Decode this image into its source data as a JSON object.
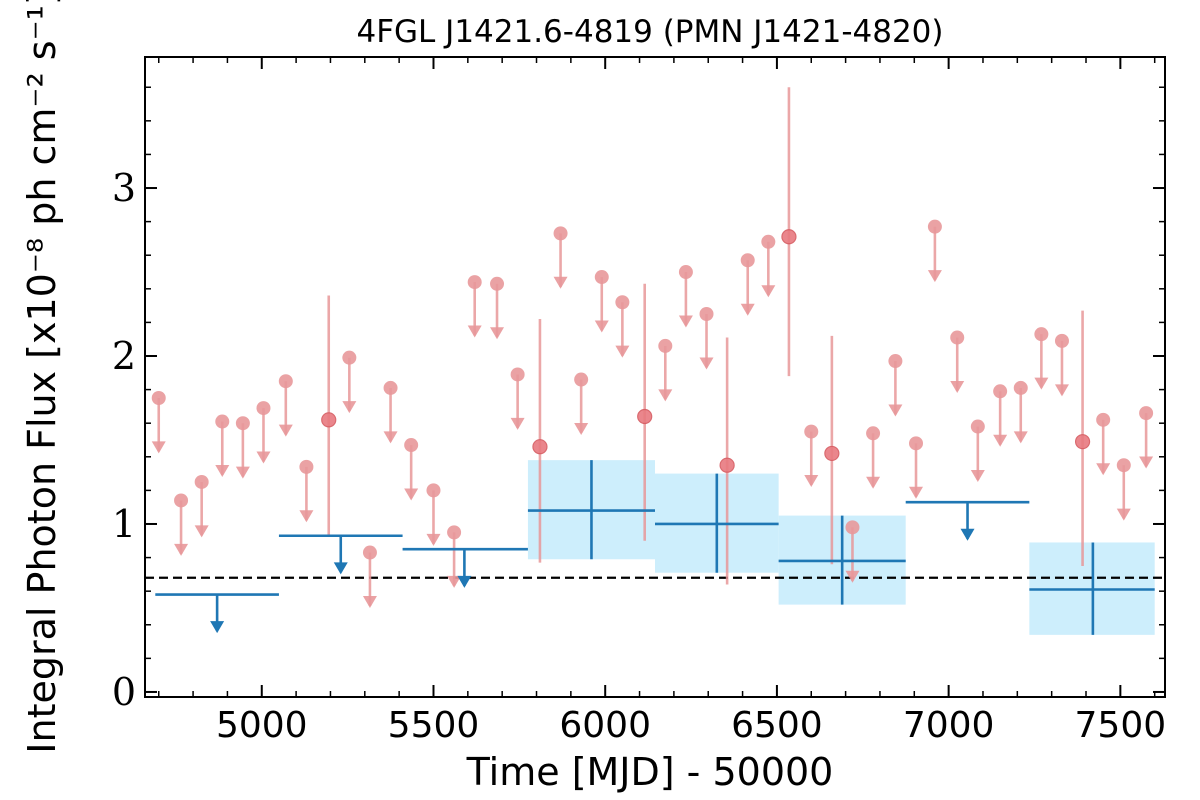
{
  "chart_data": {
    "type": "scatter",
    "title": "4FGL J1421.6-4819 (PMN J1421-4820)",
    "xlabel": "Time [MJD] - 50000",
    "ylabel": "Integral Photon Flux [x10⁻⁸ ph cm⁻² s⁻¹]",
    "xlim": [
      4660,
      7630
    ],
    "ylim": [
      -0.03,
      3.78
    ],
    "xticks": [
      5000,
      5500,
      6000,
      6500,
      7000,
      7500
    ],
    "yticks": [
      0,
      1,
      2,
      3
    ],
    "reference_level": 0.68,
    "colors": {
      "short_bins": "#e8989a",
      "long_bins": "#1f77b4",
      "long_bin_band": "#cdeefc",
      "reference_line": "#000000"
    },
    "short_bin_upper_limits": [
      {
        "x": 4700,
        "y": 1.75
      },
      {
        "x": 4765,
        "y": 1.14
      },
      {
        "x": 4825,
        "y": 1.25
      },
      {
        "x": 4885,
        "y": 1.61
      },
      {
        "x": 4945,
        "y": 1.6
      },
      {
        "x": 5005,
        "y": 1.69
      },
      {
        "x": 5070,
        "y": 1.85
      },
      {
        "x": 5130,
        "y": 1.34
      },
      {
        "x": 5255,
        "y": 1.99
      },
      {
        "x": 5315,
        "y": 0.83
      },
      {
        "x": 5375,
        "y": 1.81
      },
      {
        "x": 5435,
        "y": 1.47
      },
      {
        "x": 5500,
        "y": 1.2
      },
      {
        "x": 5560,
        "y": 0.95
      },
      {
        "x": 5620,
        "y": 2.44
      },
      {
        "x": 5685,
        "y": 2.43
      },
      {
        "x": 5745,
        "y": 1.89
      },
      {
        "x": 5870,
        "y": 2.73
      },
      {
        "x": 5930,
        "y": 1.86
      },
      {
        "x": 5990,
        "y": 2.47
      },
      {
        "x": 6050,
        "y": 2.32
      },
      {
        "x": 6175,
        "y": 2.06
      },
      {
        "x": 6235,
        "y": 2.5
      },
      {
        "x": 6295,
        "y": 2.25
      },
      {
        "x": 6415,
        "y": 2.57
      },
      {
        "x": 6475,
        "y": 2.68
      },
      {
        "x": 6600,
        "y": 1.55
      },
      {
        "x": 6720,
        "y": 0.98
      },
      {
        "x": 6780,
        "y": 1.54
      },
      {
        "x": 6845,
        "y": 1.97
      },
      {
        "x": 6905,
        "y": 1.48
      },
      {
        "x": 6960,
        "y": 2.77
      },
      {
        "x": 7025,
        "y": 2.11
      },
      {
        "x": 7085,
        "y": 1.58
      },
      {
        "x": 7150,
        "y": 1.79
      },
      {
        "x": 7210,
        "y": 1.81
      },
      {
        "x": 7270,
        "y": 2.13
      },
      {
        "x": 7330,
        "y": 2.09
      },
      {
        "x": 7450,
        "y": 1.62
      },
      {
        "x": 7510,
        "y": 1.35
      },
      {
        "x": 7575,
        "y": 1.66
      }
    ],
    "short_bin_detections": [
      {
        "x": 5195,
        "y": 1.62,
        "lo": 0.93,
        "hi": 2.36
      },
      {
        "x": 5810,
        "y": 1.46,
        "lo": 0.77,
        "hi": 2.22
      },
      {
        "x": 6115,
        "y": 1.64,
        "lo": 0.9,
        "hi": 2.43
      },
      {
        "x": 6355,
        "y": 1.35,
        "lo": 0.64,
        "hi": 2.11
      },
      {
        "x": 6535,
        "y": 2.71,
        "lo": 1.88,
        "hi": 3.6
      },
      {
        "x": 6660,
        "y": 1.42,
        "lo": 0.76,
        "hi": 2.12
      },
      {
        "x": 7390,
        "y": 1.49,
        "lo": 0.75,
        "hi": 2.27
      }
    ],
    "long_bin_upper_limits": [
      {
        "x": 4870,
        "x_lo": 4690,
        "x_hi": 5050,
        "y": 0.58
      },
      {
        "x": 5230,
        "x_lo": 5050,
        "x_hi": 5410,
        "y": 0.93
      },
      {
        "x": 5590,
        "x_lo": 5410,
        "x_hi": 5775,
        "y": 0.85
      },
      {
        "x": 7055,
        "x_lo": 6875,
        "x_hi": 7235,
        "y": 1.13
      }
    ],
    "long_bin_detections": [
      {
        "x": 5960,
        "x_lo": 5775,
        "x_hi": 6145,
        "y": 1.08,
        "lo": 0.79,
        "hi": 1.38
      },
      {
        "x": 6325,
        "x_lo": 6145,
        "x_hi": 6505,
        "y": 1.0,
        "lo": 0.71,
        "hi": 1.3
      },
      {
        "x": 6690,
        "x_lo": 6505,
        "x_hi": 6875,
        "y": 0.78,
        "lo": 0.52,
        "hi": 1.05
      },
      {
        "x": 7420,
        "x_lo": 7235,
        "x_hi": 7600,
        "y": 0.61,
        "lo": 0.34,
        "hi": 0.89
      }
    ]
  }
}
